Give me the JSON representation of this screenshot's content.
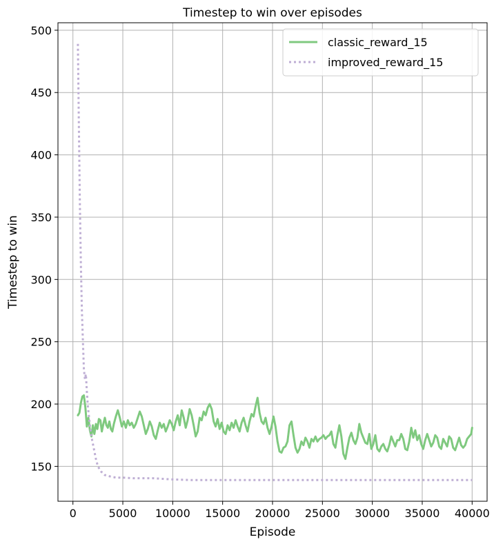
{
  "chart_data": {
    "type": "line",
    "title": "Timestep to win over episodes",
    "xlabel": "Episode",
    "ylabel": "Timestep to win",
    "xlim": [
      -1500,
      41500
    ],
    "ylim": [
      122,
      506
    ],
    "xticks": [
      0,
      5000,
      10000,
      15000,
      20000,
      25000,
      30000,
      35000,
      40000
    ],
    "xtick_labels": [
      "0",
      "5000",
      "10000",
      "15000",
      "20000",
      "25000",
      "30000",
      "35000",
      "40000"
    ],
    "yticks": [
      150,
      200,
      250,
      300,
      350,
      400,
      450,
      500
    ],
    "ytick_labels": [
      "150",
      "200",
      "250",
      "300",
      "350",
      "400",
      "450",
      "500"
    ],
    "grid": true,
    "legend_position": "top-right",
    "series": [
      {
        "name": "classic_reward_15",
        "color": "#7fc97f",
        "style": "solid",
        "points": [
          [
            500,
            191
          ],
          [
            650,
            193
          ],
          [
            800,
            201
          ],
          [
            950,
            206
          ],
          [
            1100,
            207
          ],
          [
            1250,
            197
          ],
          [
            1400,
            182
          ],
          [
            1550,
            189
          ],
          [
            1700,
            179
          ],
          [
            1850,
            174
          ],
          [
            2000,
            183
          ],
          [
            2150,
            176
          ],
          [
            2300,
            184
          ],
          [
            2450,
            180
          ],
          [
            2600,
            188
          ],
          [
            2750,
            187
          ],
          [
            2900,
            178
          ],
          [
            3050,
            184
          ],
          [
            3200,
            189
          ],
          [
            3350,
            183
          ],
          [
            3500,
            181
          ],
          [
            3650,
            186
          ],
          [
            3800,
            180
          ],
          [
            3950,
            178
          ],
          [
            4100,
            184
          ],
          [
            4300,
            190
          ],
          [
            4500,
            195
          ],
          [
            4700,
            189
          ],
          [
            4900,
            182
          ],
          [
            5100,
            186
          ],
          [
            5300,
            181
          ],
          [
            5500,
            187
          ],
          [
            5700,
            183
          ],
          [
            5900,
            185
          ],
          [
            6100,
            181
          ],
          [
            6300,
            184
          ],
          [
            6500,
            189
          ],
          [
            6700,
            194
          ],
          [
            6900,
            190
          ],
          [
            7100,
            183
          ],
          [
            7300,
            176
          ],
          [
            7500,
            180
          ],
          [
            7700,
            186
          ],
          [
            7900,
            182
          ],
          [
            8100,
            175
          ],
          [
            8300,
            172
          ],
          [
            8500,
            179
          ],
          [
            8700,
            185
          ],
          [
            8900,
            181
          ],
          [
            9100,
            184
          ],
          [
            9300,
            178
          ],
          [
            9500,
            182
          ],
          [
            9700,
            187
          ],
          [
            9900,
            184
          ],
          [
            10100,
            179
          ],
          [
            10300,
            186
          ],
          [
            10500,
            191
          ],
          [
            10700,
            183
          ],
          [
            10900,
            195
          ],
          [
            11100,
            189
          ],
          [
            11300,
            181
          ],
          [
            11500,
            187
          ],
          [
            11700,
            196
          ],
          [
            11900,
            191
          ],
          [
            12100,
            183
          ],
          [
            12300,
            174
          ],
          [
            12500,
            178
          ],
          [
            12700,
            189
          ],
          [
            12900,
            187
          ],
          [
            13100,
            194
          ],
          [
            13300,
            191
          ],
          [
            13500,
            197
          ],
          [
            13700,
            200
          ],
          [
            13900,
            196
          ],
          [
            14100,
            186
          ],
          [
            14300,
            182
          ],
          [
            14500,
            188
          ],
          [
            14700,
            180
          ],
          [
            14900,
            185
          ],
          [
            15100,
            178
          ],
          [
            15300,
            176
          ],
          [
            15500,
            183
          ],
          [
            15700,
            179
          ],
          [
            15900,
            185
          ],
          [
            16100,
            181
          ],
          [
            16300,
            187
          ],
          [
            16500,
            182
          ],
          [
            16700,
            178
          ],
          [
            16900,
            185
          ],
          [
            17100,
            189
          ],
          [
            17300,
            183
          ],
          [
            17500,
            178
          ],
          [
            17700,
            186
          ],
          [
            17900,
            192
          ],
          [
            18100,
            190
          ],
          [
            18300,
            198
          ],
          [
            18500,
            205
          ],
          [
            18700,
            193
          ],
          [
            18900,
            186
          ],
          [
            19100,
            184
          ],
          [
            19300,
            189
          ],
          [
            19500,
            181
          ],
          [
            19700,
            176
          ],
          [
            19900,
            182
          ],
          [
            20100,
            190
          ],
          [
            20300,
            182
          ],
          [
            20500,
            170
          ],
          [
            20700,
            162
          ],
          [
            20900,
            161
          ],
          [
            21100,
            165
          ],
          [
            21300,
            166
          ],
          [
            21500,
            170
          ],
          [
            21700,
            183
          ],
          [
            21900,
            186
          ],
          [
            22100,
            175
          ],
          [
            22300,
            165
          ],
          [
            22500,
            161
          ],
          [
            22700,
            164
          ],
          [
            22900,
            170
          ],
          [
            23100,
            167
          ],
          [
            23300,
            173
          ],
          [
            23500,
            170
          ],
          [
            23700,
            165
          ],
          [
            23900,
            172
          ],
          [
            24100,
            170
          ],
          [
            24300,
            174
          ],
          [
            24500,
            170
          ],
          [
            24700,
            172
          ],
          [
            24900,
            173
          ],
          [
            25100,
            175
          ],
          [
            25300,
            172
          ],
          [
            25500,
            174
          ],
          [
            25700,
            175
          ],
          [
            25900,
            178
          ],
          [
            26100,
            168
          ],
          [
            26300,
            165
          ],
          [
            26500,
            175
          ],
          [
            26700,
            183
          ],
          [
            26900,
            174
          ],
          [
            27100,
            160
          ],
          [
            27300,
            156
          ],
          [
            27500,
            165
          ],
          [
            27700,
            173
          ],
          [
            27900,
            177
          ],
          [
            28100,
            171
          ],
          [
            28300,
            168
          ],
          [
            28500,
            173
          ],
          [
            28700,
            184
          ],
          [
            28900,
            177
          ],
          [
            29100,
            173
          ],
          [
            29300,
            169
          ],
          [
            29500,
            168
          ],
          [
            29700,
            176
          ],
          [
            29900,
            164
          ],
          [
            30100,
            168
          ],
          [
            30300,
            175
          ],
          [
            30500,
            164
          ],
          [
            30700,
            162
          ],
          [
            30900,
            166
          ],
          [
            31100,
            168
          ],
          [
            31300,
            164
          ],
          [
            31500,
            162
          ],
          [
            31700,
            167
          ],
          [
            31900,
            174
          ],
          [
            32100,
            170
          ],
          [
            32300,
            166
          ],
          [
            32500,
            171
          ],
          [
            32700,
            171
          ],
          [
            32900,
            176
          ],
          [
            33100,
            172
          ],
          [
            33300,
            164
          ],
          [
            33500,
            163
          ],
          [
            33700,
            170
          ],
          [
            33900,
            181
          ],
          [
            34100,
            173
          ],
          [
            34300,
            179
          ],
          [
            34500,
            171
          ],
          [
            34700,
            175
          ],
          [
            34900,
            168
          ],
          [
            35100,
            164
          ],
          [
            35300,
            171
          ],
          [
            35500,
            176
          ],
          [
            35700,
            171
          ],
          [
            35900,
            166
          ],
          [
            36100,
            169
          ],
          [
            36300,
            175
          ],
          [
            36500,
            173
          ],
          [
            36700,
            166
          ],
          [
            36900,
            164
          ],
          [
            37100,
            172
          ],
          [
            37300,
            169
          ],
          [
            37500,
            166
          ],
          [
            37700,
            174
          ],
          [
            37900,
            172
          ],
          [
            38100,
            165
          ],
          [
            38300,
            163
          ],
          [
            38500,
            168
          ],
          [
            38700,
            173
          ],
          [
            38900,
            167
          ],
          [
            39100,
            165
          ],
          [
            39300,
            167
          ],
          [
            39500,
            172
          ],
          [
            39700,
            174
          ],
          [
            39900,
            176
          ],
          [
            40000,
            181
          ]
        ]
      },
      {
        "name": "improved_reward_15",
        "color": "#beaed4",
        "style": "dotted",
        "points": [
          [
            500,
            489
          ],
          [
            600,
            420
          ],
          [
            700,
            360
          ],
          [
            800,
            310
          ],
          [
            900,
            275
          ],
          [
            1000,
            250
          ],
          [
            1100,
            228
          ],
          [
            1200,
            220
          ],
          [
            1300,
            224
          ],
          [
            1400,
            210
          ],
          [
            1500,
            198
          ],
          [
            1700,
            183
          ],
          [
            1900,
            172
          ],
          [
            2100,
            164
          ],
          [
            2300,
            156
          ],
          [
            2500,
            150
          ],
          [
            2800,
            146
          ],
          [
            3200,
            143
          ],
          [
            3700,
            142
          ],
          [
            4300,
            141
          ],
          [
            5000,
            141
          ],
          [
            6000,
            140.5
          ],
          [
            7000,
            140.5
          ],
          [
            8000,
            140.5
          ],
          [
            9000,
            140
          ],
          [
            10000,
            139.5
          ],
          [
            12000,
            139
          ],
          [
            15000,
            139
          ],
          [
            20000,
            139
          ],
          [
            25000,
            139
          ],
          [
            30000,
            139
          ],
          [
            35000,
            139
          ],
          [
            40000,
            139
          ]
        ]
      }
    ]
  }
}
